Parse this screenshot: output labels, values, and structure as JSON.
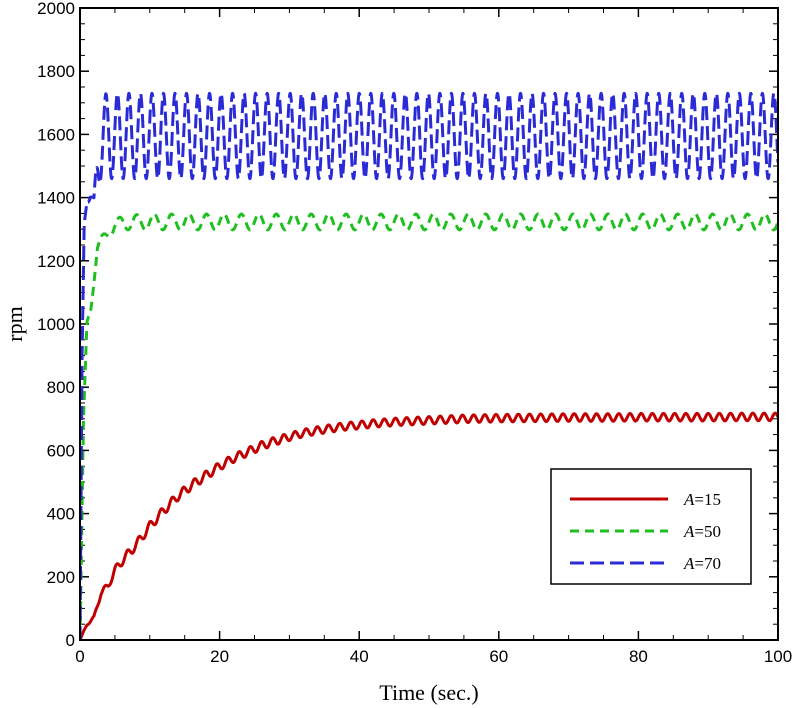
{
  "chart_data": {
    "type": "line",
    "xlabel": "Time (sec.)",
    "ylabel": "rpm",
    "xlim": [
      0,
      100
    ],
    "ylim": [
      0,
      2000
    ],
    "x_ticks": [
      "0",
      "20",
      "40",
      "60",
      "80",
      "100"
    ],
    "y_ticks": [
      "0",
      "200",
      "400",
      "600",
      "800",
      "1000",
      "1200",
      "1400",
      "1600",
      "1800",
      "2000"
    ],
    "grid": false,
    "legend_position": "bottom-right",
    "series": [
      {
        "name_var": "A",
        "name_value": "=15",
        "color": "#c00000",
        "dash": "solid",
        "x": [
          0,
          1,
          2,
          3,
          4,
          5,
          6,
          8,
          10,
          12,
          14,
          16,
          18,
          20,
          22,
          24,
          26,
          28,
          30,
          32,
          34,
          36,
          38,
          40,
          42,
          45,
          50,
          55,
          60,
          65,
          70,
          75,
          80,
          85,
          90,
          95,
          100
        ],
        "y": [
          0,
          50,
          70,
          150,
          170,
          220,
          250,
          300,
          360,
          410,
          455,
          490,
          520,
          550,
          575,
          595,
          615,
          630,
          643,
          655,
          663,
          670,
          676,
          680,
          685,
          690,
          695,
          700,
          702,
          703,
          704,
          704,
          705,
          705,
          705,
          706,
          706
        ],
        "osc_amp": [
          0,
          4,
          6,
          10,
          10,
          12,
          14,
          14,
          14,
          14,
          14,
          14,
          14,
          13,
          13,
          13,
          13,
          13,
          12,
          12,
          12,
          12,
          12,
          12,
          12,
          12,
          12,
          12,
          12,
          12,
          12,
          12,
          12,
          12,
          12,
          12,
          12
        ],
        "osc_period": 1.6
      },
      {
        "name_var": "A",
        "name_value": "=50",
        "color": "#1fbf1f",
        "dash": "short-dash",
        "x": [
          0,
          0.5,
          1,
          1.5,
          2,
          2.5,
          3,
          4,
          5,
          6,
          8,
          10,
          20,
          40,
          60,
          80,
          100
        ],
        "y": [
          0,
          700,
          1000,
          1050,
          1150,
          1240,
          1260,
          1290,
          1310,
          1320,
          1322,
          1323,
          1323,
          1323,
          1323,
          1323,
          1323
        ],
        "osc_amp": [
          0,
          0,
          10,
          20,
          20,
          15,
          15,
          20,
          20,
          22,
          24,
          25,
          25,
          25,
          25,
          25,
          25
        ],
        "osc_period": 2.5
      },
      {
        "name_var": "A",
        "name_value": "=70",
        "color": "#2b2bd6",
        "dash": "long-dash",
        "x": [
          0,
          0.3,
          0.6,
          1,
          1.5,
          2,
          2.5,
          3,
          4,
          100
        ],
        "y": [
          0,
          900,
          1300,
          1400,
          1410,
          1380,
          1500,
          1590,
          1595,
          1595
        ],
        "osc_amp": [
          0,
          0,
          20,
          20,
          15,
          20,
          80,
          135,
          135,
          135
        ],
        "osc_period": 1.65
      }
    ]
  }
}
